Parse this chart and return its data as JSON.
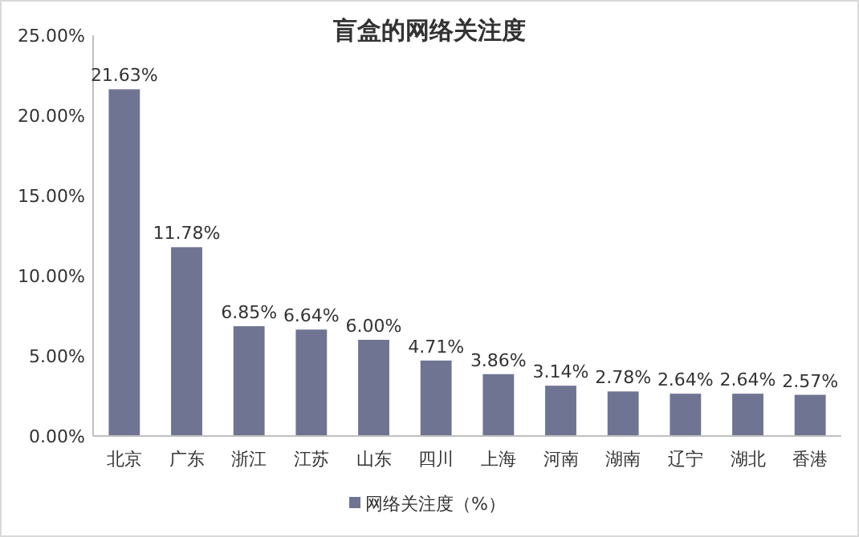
{
  "chart_data": {
    "type": "bar",
    "title": "盲盒的网络关注度",
    "categories": [
      "北京",
      "广东",
      "浙江",
      "江苏",
      "山东",
      "四川",
      "上海",
      "河南",
      "湖南",
      "辽宁",
      "湖北",
      "香港"
    ],
    "series": [
      {
        "name": "网络关注度（%）",
        "color": "#6f7492",
        "values": [
          21.63,
          11.78,
          6.85,
          6.64,
          6.0,
          4.71,
          3.86,
          3.14,
          2.78,
          2.64,
          2.64,
          2.57
        ],
        "value_labels": [
          "21.63%",
          "11.78%",
          "6.85%",
          "6.64%",
          "6.00%",
          "4.71%",
          "3.86%",
          "3.14%",
          "2.78%",
          "2.64%",
          "2.64%",
          "2.57%"
        ]
      }
    ],
    "ylim": [
      0,
      25
    ],
    "yticks": [
      {
        "value": 0,
        "label": "0.00%"
      },
      {
        "value": 5,
        "label": "5.00%"
      },
      {
        "value": 10,
        "label": "10.00%"
      },
      {
        "value": 15,
        "label": "15.00%"
      },
      {
        "value": 20,
        "label": "20.00%"
      },
      {
        "value": 25,
        "label": "25.00%"
      }
    ],
    "legend": "bottom"
  }
}
